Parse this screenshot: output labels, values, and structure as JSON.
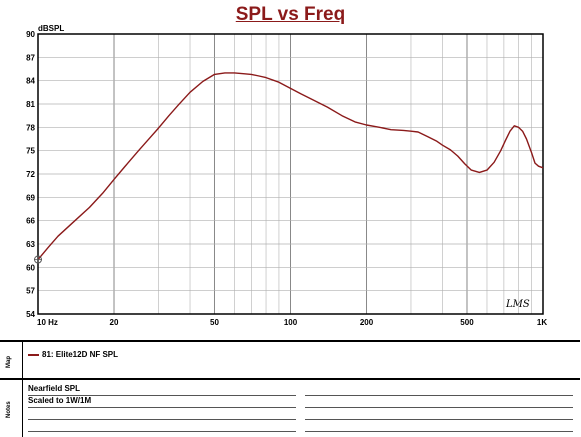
{
  "chart_data": {
    "type": "line",
    "title": "SPL vs Freq",
    "ylabel": "dBSPL",
    "xscale": "log",
    "xlim": [
      10,
      1000
    ],
    "ylim": [
      54,
      90
    ],
    "yticks": [
      54,
      57,
      60,
      63,
      66,
      69,
      72,
      75,
      78,
      81,
      84,
      87,
      90
    ],
    "xticks": [
      {
        "value": 10,
        "label": "10 Hz"
      },
      {
        "value": 20,
        "label": "20"
      },
      {
        "value": 50,
        "label": "50"
      },
      {
        "value": 100,
        "label": "100"
      },
      {
        "value": 200,
        "label": "200"
      },
      {
        "value": 500,
        "label": "500"
      },
      {
        "value": 1000,
        "label": "1K"
      }
    ],
    "grid": true,
    "watermark": "LMS",
    "series": [
      {
        "name": "81: Elite12D NF SPL",
        "color": "#8b1a1a",
        "x": [
          10,
          11,
          12,
          14,
          16,
          18,
          20,
          22,
          25,
          28,
          30,
          33,
          36,
          40,
          45,
          50,
          55,
          60,
          65,
          70,
          75,
          80,
          90,
          100,
          110,
          120,
          140,
          160,
          180,
          200,
          225,
          250,
          280,
          300,
          320,
          350,
          380,
          400,
          430,
          460,
          490,
          520,
          560,
          600,
          640,
          680,
          710,
          740,
          770,
          800,
          830,
          860,
          900,
          930,
          960,
          1000
        ],
        "y": [
          61.0,
          62.6,
          64.0,
          66.0,
          67.7,
          69.5,
          71.3,
          72.9,
          75.0,
          76.8,
          77.9,
          79.5,
          80.9,
          82.5,
          83.9,
          84.8,
          85.0,
          85.0,
          84.9,
          84.8,
          84.6,
          84.4,
          83.8,
          83.0,
          82.3,
          81.7,
          80.6,
          79.5,
          78.7,
          78.3,
          78.0,
          77.7,
          77.6,
          77.5,
          77.4,
          76.8,
          76.2,
          75.7,
          75.1,
          74.3,
          73.3,
          72.5,
          72.2,
          72.5,
          73.5,
          75.0,
          76.3,
          77.5,
          78.2,
          78.0,
          77.5,
          76.5,
          74.8,
          73.4,
          73.0,
          72.8
        ]
      }
    ]
  },
  "panels": {
    "map_label": "Map",
    "notes_label": "Notes",
    "notes": [
      "Nearfield SPL",
      "Scaled to 1W/1M"
    ]
  }
}
